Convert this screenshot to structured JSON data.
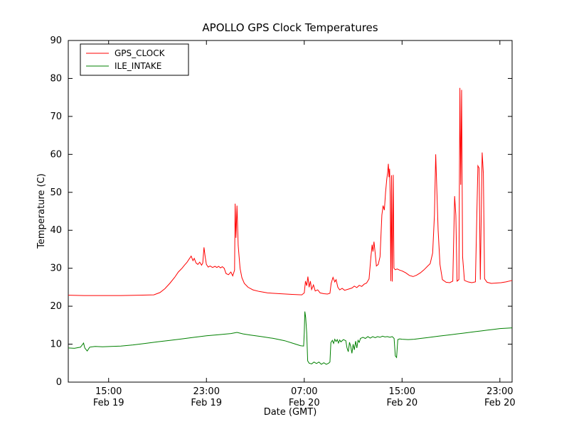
{
  "chart_data": {
    "type": "line",
    "title": "APOLLO GPS Clock Temperatures",
    "xlabel": "Date (GMT)",
    "ylabel": "Temperature (C)",
    "ylim": [
      0,
      90
    ],
    "yticks": [
      0,
      10,
      20,
      30,
      40,
      50,
      60,
      70,
      80,
      90
    ],
    "xlim_hours": [
      11.7,
      48.0
    ],
    "xticks": [
      {
        "hour": 15,
        "time": "15:00",
        "date": "Feb 19"
      },
      {
        "hour": 23,
        "time": "23:00",
        "date": "Feb 19"
      },
      {
        "hour": 31,
        "time": "07:00",
        "date": "Feb 20"
      },
      {
        "hour": 39,
        "time": "15:00",
        "date": "Feb 20"
      },
      {
        "hour": 47,
        "time": "23:00",
        "date": "Feb 20"
      }
    ],
    "grid": false,
    "legend_position": "upper left",
    "series": [
      {
        "name": "GPS_CLOCK",
        "color": "#ff0000",
        "points": [
          [
            11.7,
            22.9
          ],
          [
            13,
            22.8
          ],
          [
            14.5,
            22.8
          ],
          [
            16,
            22.8
          ],
          [
            17.5,
            22.9
          ],
          [
            18.7,
            23
          ],
          [
            19.2,
            23.6
          ],
          [
            19.6,
            24.6
          ],
          [
            20,
            26
          ],
          [
            20.4,
            27.6
          ],
          [
            20.7,
            29
          ],
          [
            21,
            30
          ],
          [
            21.2,
            30.8
          ],
          [
            21.4,
            31.5
          ],
          [
            21.6,
            32.5
          ],
          [
            21.75,
            33.2
          ],
          [
            21.9,
            32
          ],
          [
            22,
            32.6
          ],
          [
            22.15,
            31.4
          ],
          [
            22.3,
            31
          ],
          [
            22.45,
            31.6
          ],
          [
            22.6,
            30.8
          ],
          [
            22.7,
            31.4
          ],
          [
            22.8,
            35.5
          ],
          [
            22.9,
            33
          ],
          [
            23,
            31
          ],
          [
            23.15,
            30.3
          ],
          [
            23.3,
            30.6
          ],
          [
            23.5,
            30.2
          ],
          [
            23.7,
            30.5
          ],
          [
            23.85,
            30.2
          ],
          [
            24,
            30.5
          ],
          [
            24.15,
            30.1
          ],
          [
            24.3,
            30.4
          ],
          [
            24.45,
            30
          ],
          [
            24.6,
            28.6
          ],
          [
            24.8,
            28.3
          ],
          [
            25,
            29
          ],
          [
            25.15,
            28
          ],
          [
            25.3,
            29.5
          ],
          [
            25.35,
            47
          ],
          [
            25.42,
            38
          ],
          [
            25.5,
            46.5
          ],
          [
            25.6,
            36
          ],
          [
            25.75,
            30
          ],
          [
            25.9,
            27.5
          ],
          [
            26.1,
            26
          ],
          [
            26.4,
            25
          ],
          [
            26.8,
            24.3
          ],
          [
            27.3,
            23.9
          ],
          [
            28,
            23.5
          ],
          [
            29,
            23.3
          ],
          [
            30,
            23.1
          ],
          [
            30.8,
            23
          ],
          [
            31,
            23.5
          ],
          [
            31.1,
            26.6
          ],
          [
            31.2,
            25.4
          ],
          [
            31.3,
            27.8
          ],
          [
            31.4,
            25
          ],
          [
            31.5,
            26.6
          ],
          [
            31.6,
            24.4
          ],
          [
            31.75,
            25.6
          ],
          [
            31.9,
            24
          ],
          [
            32.1,
            24.3
          ],
          [
            32.3,
            23.5
          ],
          [
            32.6,
            23.3
          ],
          [
            32.9,
            23.2
          ],
          [
            33.1,
            23.4
          ],
          [
            33.2,
            26
          ],
          [
            33.35,
            27.6
          ],
          [
            33.5,
            26.4
          ],
          [
            33.6,
            27
          ],
          [
            33.75,
            25
          ],
          [
            33.9,
            24.3
          ],
          [
            34.1,
            24.7
          ],
          [
            34.3,
            24.2
          ],
          [
            34.6,
            24.5
          ],
          [
            34.9,
            24.8
          ],
          [
            35.1,
            25.3
          ],
          [
            35.3,
            24.9
          ],
          [
            35.5,
            25.5
          ],
          [
            35.7,
            25.2
          ],
          [
            35.9,
            25.8
          ],
          [
            36.1,
            26.1
          ],
          [
            36.3,
            27.2
          ],
          [
            36.45,
            33
          ],
          [
            36.55,
            36.2
          ],
          [
            36.62,
            34.4
          ],
          [
            36.7,
            37
          ],
          [
            36.8,
            34
          ],
          [
            36.9,
            30.6
          ],
          [
            37.05,
            31
          ],
          [
            37.2,
            33
          ],
          [
            37.35,
            44
          ],
          [
            37.45,
            46.5
          ],
          [
            37.55,
            45.3
          ],
          [
            37.65,
            50
          ],
          [
            37.75,
            53.5
          ],
          [
            37.82,
            55.2
          ],
          [
            37.88,
            57.5
          ],
          [
            37.93,
            54
          ],
          [
            37.98,
            56.2
          ],
          [
            38.03,
            49
          ],
          [
            38.08,
            26.6
          ],
          [
            38.14,
            54.5
          ],
          [
            38.2,
            26.5
          ],
          [
            38.28,
            54.6
          ],
          [
            38.34,
            30
          ],
          [
            38.45,
            29.6
          ],
          [
            38.6,
            29.8
          ],
          [
            38.8,
            29.5
          ],
          [
            39,
            29.3
          ],
          [
            39.3,
            28.8
          ],
          [
            39.6,
            28.1
          ],
          [
            39.9,
            27.8
          ],
          [
            40.2,
            28.2
          ],
          [
            40.5,
            28.8
          ],
          [
            40.8,
            29.6
          ],
          [
            41.1,
            30.6
          ],
          [
            41.3,
            31.2
          ],
          [
            41.5,
            34
          ],
          [
            41.65,
            44
          ],
          [
            41.75,
            60
          ],
          [
            41.85,
            50
          ],
          [
            41.95,
            40
          ],
          [
            42.1,
            31
          ],
          [
            42.3,
            27
          ],
          [
            42.6,
            26.3
          ],
          [
            42.9,
            26.2
          ],
          [
            43.15,
            26.6
          ],
          [
            43.3,
            49
          ],
          [
            43.4,
            44
          ],
          [
            43.5,
            26.6
          ],
          [
            43.65,
            27
          ],
          [
            43.73,
            77.5
          ],
          [
            43.8,
            52
          ],
          [
            43.87,
            77
          ],
          [
            43.95,
            33
          ],
          [
            44.1,
            26.8
          ],
          [
            44.4,
            26.4
          ],
          [
            44.7,
            26.2
          ],
          [
            45,
            26.4
          ],
          [
            45.2,
            57
          ],
          [
            45.3,
            56.4
          ],
          [
            45.4,
            27
          ],
          [
            45.55,
            60.5
          ],
          [
            45.65,
            55
          ],
          [
            45.75,
            27.2
          ],
          [
            45.95,
            26.3
          ],
          [
            46.3,
            26
          ],
          [
            46.7,
            26.1
          ],
          [
            47.1,
            26.2
          ],
          [
            47.5,
            26.4
          ],
          [
            48,
            26.8
          ]
        ]
      },
      {
        "name": "ILE_INTAKE",
        "color": "#008000",
        "points": [
          [
            11.7,
            9
          ],
          [
            12.2,
            8.9
          ],
          [
            12.7,
            9.2
          ],
          [
            12.95,
            10.3
          ],
          [
            13.05,
            9
          ],
          [
            13.25,
            8.2
          ],
          [
            13.45,
            9.2
          ],
          [
            13.9,
            9.4
          ],
          [
            14.5,
            9.3
          ],
          [
            15.2,
            9.4
          ],
          [
            16,
            9.5
          ],
          [
            17,
            9.8
          ],
          [
            18,
            10.2
          ],
          [
            19,
            10.6
          ],
          [
            20,
            11
          ],
          [
            21,
            11.4
          ],
          [
            22,
            11.8
          ],
          [
            23,
            12.2
          ],
          [
            24,
            12.5
          ],
          [
            25,
            12.8
          ],
          [
            25.5,
            13.1
          ],
          [
            26,
            12.7
          ],
          [
            26.6,
            12.4
          ],
          [
            27.5,
            12
          ],
          [
            28.5,
            11.5
          ],
          [
            29.4,
            10.9
          ],
          [
            30.2,
            10.1
          ],
          [
            30.7,
            9.6
          ],
          [
            30.95,
            9.5
          ],
          [
            31,
            13
          ],
          [
            31.05,
            18.6
          ],
          [
            31.12,
            17
          ],
          [
            31.2,
            13
          ],
          [
            31.28,
            5.6
          ],
          [
            31.4,
            5
          ],
          [
            31.6,
            4.8
          ],
          [
            31.8,
            5.3
          ],
          [
            32,
            4.9
          ],
          [
            32.2,
            5.3
          ],
          [
            32.4,
            4.7
          ],
          [
            32.6,
            5.1
          ],
          [
            32.8,
            4.7
          ],
          [
            33,
            5
          ],
          [
            33.1,
            5.3
          ],
          [
            33.18,
            10.4
          ],
          [
            33.3,
            11
          ],
          [
            33.4,
            10.2
          ],
          [
            33.5,
            11.3
          ],
          [
            33.6,
            10.7
          ],
          [
            33.7,
            11.2
          ],
          [
            33.8,
            10.3
          ],
          [
            33.9,
            11.1
          ],
          [
            34,
            10.6
          ],
          [
            34.2,
            11.2
          ],
          [
            34.4,
            10.9
          ],
          [
            34.5,
            9
          ],
          [
            34.6,
            8
          ],
          [
            34.7,
            10.5
          ],
          [
            34.8,
            9.4
          ],
          [
            34.9,
            7.6
          ],
          [
            35,
            10
          ],
          [
            35.1,
            8.5
          ],
          [
            35.2,
            10.8
          ],
          [
            35.3,
            9
          ],
          [
            35.4,
            11
          ],
          [
            35.5,
            10.5
          ],
          [
            35.6,
            11.5
          ],
          [
            35.8,
            11.8
          ],
          [
            36,
            11.5
          ],
          [
            36.2,
            12
          ],
          [
            36.4,
            11.6
          ],
          [
            36.6,
            12
          ],
          [
            36.8,
            11.7
          ],
          [
            37,
            12
          ],
          [
            37.2,
            11.8
          ],
          [
            37.4,
            12.1
          ],
          [
            37.6,
            11.9
          ],
          [
            37.8,
            12
          ],
          [
            38,
            11.8
          ],
          [
            38.2,
            12
          ],
          [
            38.35,
            11.5
          ],
          [
            38.45,
            6.9
          ],
          [
            38.55,
            6.5
          ],
          [
            38.65,
            11.2
          ],
          [
            38.8,
            11.4
          ],
          [
            39,
            11.3
          ],
          [
            39.5,
            11.2
          ],
          [
            40,
            11.3
          ],
          [
            40.5,
            11.5
          ],
          [
            41,
            11.7
          ],
          [
            41.5,
            11.9
          ],
          [
            42,
            12.1
          ],
          [
            42.5,
            12.3
          ],
          [
            43,
            12.5
          ],
          [
            43.5,
            12.7
          ],
          [
            44,
            12.9
          ],
          [
            44.5,
            13.1
          ],
          [
            45,
            13.3
          ],
          [
            45.5,
            13.5
          ],
          [
            46,
            13.7
          ],
          [
            46.5,
            13.9
          ],
          [
            47,
            14.1
          ],
          [
            47.5,
            14.2
          ],
          [
            48,
            14.3
          ]
        ]
      }
    ]
  }
}
